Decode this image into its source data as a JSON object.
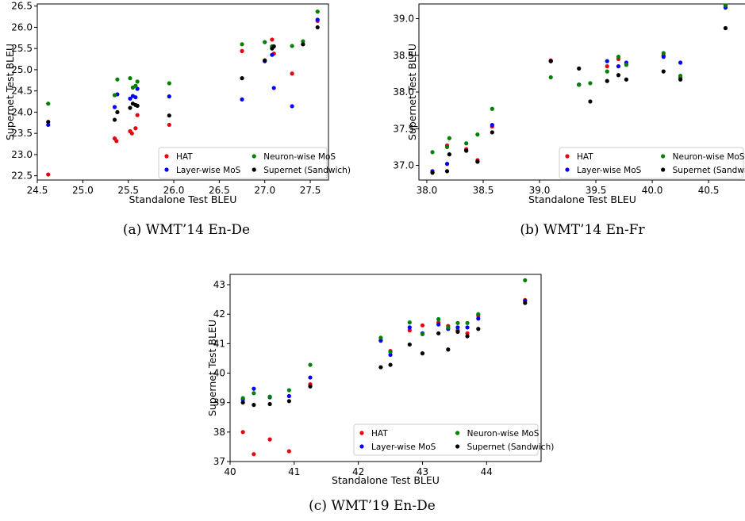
{
  "chart_data": [
    {
      "type": "scatter",
      "caption": "(a) WMT’14 En-De",
      "xlabel": "Standalone Test BLEU",
      "ylabel": "Supernet Test BLEU",
      "xlim": [
        24.5,
        27.7
      ],
      "ylim": [
        22.4,
        26.55
      ],
      "xticks": [
        "24.5",
        "25.0",
        "25.5",
        "26.0",
        "26.5",
        "27.0",
        "27.5"
      ],
      "yticks": [
        "22.5",
        "23.0",
        "23.5",
        "24.0",
        "24.5",
        "25.0",
        "25.5",
        "26.0",
        "26.5"
      ],
      "legend_position": "lower-right",
      "series": [
        {
          "name": "HAT",
          "color": "#e8000b",
          "points": [
            [
              24.62,
              22.53
            ],
            [
              25.35,
              23.38
            ],
            [
              25.37,
              23.32
            ],
            [
              25.52,
              23.55
            ],
            [
              25.54,
              23.5
            ],
            [
              25.58,
              23.62
            ],
            [
              25.6,
              23.93
            ],
            [
              25.95,
              23.7
            ],
            [
              26.75,
              25.44
            ],
            [
              27.08,
              25.71
            ],
            [
              27.1,
              25.38
            ],
            [
              27.3,
              24.91
            ],
            [
              27.58,
              26.15
            ]
          ]
        },
        {
          "name": "Layer-wise MoS",
          "color": "#0000ff",
          "points": [
            [
              24.62,
              23.7
            ],
            [
              25.35,
              24.12
            ],
            [
              25.38,
              24.42
            ],
            [
              25.52,
              24.32
            ],
            [
              25.55,
              24.38
            ],
            [
              25.58,
              24.35
            ],
            [
              25.6,
              24.55
            ],
            [
              25.95,
              24.37
            ],
            [
              26.75,
              24.3
            ],
            [
              27.0,
              25.2
            ],
            [
              27.1,
              24.57
            ],
            [
              27.08,
              25.35
            ],
            [
              27.3,
              24.14
            ],
            [
              27.42,
              25.6
            ],
            [
              27.58,
              26.18
            ]
          ]
        },
        {
          "name": "Neuron-wise MoS",
          "color": "#008000",
          "points": [
            [
              24.62,
              24.2
            ],
            [
              25.35,
              24.4
            ],
            [
              25.38,
              24.77
            ],
            [
              25.52,
              24.8
            ],
            [
              25.55,
              24.58
            ],
            [
              25.58,
              24.62
            ],
            [
              25.6,
              24.72
            ],
            [
              25.95,
              24.68
            ],
            [
              26.75,
              25.6
            ],
            [
              27.0,
              25.65
            ],
            [
              27.08,
              25.55
            ],
            [
              27.3,
              25.56
            ],
            [
              27.42,
              25.67
            ],
            [
              27.58,
              26.37
            ]
          ]
        },
        {
          "name": "Supernet (Sandwich)",
          "color": "#000000",
          "points": [
            [
              24.62,
              23.77
            ],
            [
              25.35,
              23.82
            ],
            [
              25.38,
              24.0
            ],
            [
              25.52,
              24.1
            ],
            [
              25.55,
              24.2
            ],
            [
              25.58,
              24.17
            ],
            [
              25.6,
              24.15
            ],
            [
              25.95,
              23.92
            ],
            [
              26.75,
              24.8
            ],
            [
              27.0,
              25.22
            ],
            [
              27.08,
              25.5
            ],
            [
              27.1,
              25.55
            ],
            [
              27.42,
              25.6
            ],
            [
              27.58,
              26.0
            ]
          ]
        }
      ]
    },
    {
      "type": "scatter",
      "caption": "(b) WMT’14 En-Fr",
      "xlabel": "Standalone Test BLEU",
      "ylabel": "Supernet Test BLEU",
      "xlim": [
        37.93,
        40.83
      ],
      "ylim": [
        36.8,
        39.2
      ],
      "xticks": [
        "38.0",
        "38.5",
        "39.0",
        "39.5",
        "40.0",
        "40.5"
      ],
      "yticks": [
        "37.0",
        "37.5",
        "38.0",
        "38.5",
        "39.0"
      ],
      "legend_position": "lower-right",
      "series": [
        {
          "name": "HAT",
          "color": "#e8000b",
          "points": [
            [
              38.05,
              36.9
            ],
            [
              38.18,
              37.27
            ],
            [
              38.35,
              37.22
            ],
            [
              38.45,
              37.07
            ],
            [
              38.58,
              37.53
            ],
            [
              39.1,
              38.43
            ],
            [
              39.35,
              38.1
            ],
            [
              39.6,
              38.35
            ],
            [
              39.7,
              38.45
            ],
            [
              40.1,
              38.5
            ],
            [
              40.25,
              38.2
            ],
            [
              40.65,
              39.17
            ]
          ]
        },
        {
          "name": "Layer-wise MoS",
          "color": "#0000ff",
          "points": [
            [
              38.05,
              36.92
            ],
            [
              38.18,
              37.02
            ],
            [
              38.35,
              37.2
            ],
            [
              38.45,
              37.05
            ],
            [
              38.58,
              37.55
            ],
            [
              39.1,
              38.42
            ],
            [
              39.35,
              38.1
            ],
            [
              39.6,
              38.42
            ],
            [
              39.7,
              38.35
            ],
            [
              39.77,
              38.4
            ],
            [
              40.1,
              38.48
            ],
            [
              40.25,
              38.4
            ],
            [
              40.65,
              39.15
            ]
          ]
        },
        {
          "name": "Neuron-wise MoS",
          "color": "#008000",
          "points": [
            [
              38.05,
              37.18
            ],
            [
              38.18,
              37.25
            ],
            [
              38.2,
              37.37
            ],
            [
              38.35,
              37.3
            ],
            [
              38.45,
              37.42
            ],
            [
              38.58,
              37.77
            ],
            [
              39.1,
              38.2
            ],
            [
              39.35,
              38.1
            ],
            [
              39.45,
              38.12
            ],
            [
              39.6,
              38.28
            ],
            [
              39.7,
              38.48
            ],
            [
              39.77,
              38.37
            ],
            [
              40.1,
              38.53
            ],
            [
              40.25,
              38.22
            ],
            [
              40.65,
              39.18
            ]
          ]
        },
        {
          "name": "Supernet (Sandwich)",
          "color": "#000000",
          "points": [
            [
              38.05,
              36.9
            ],
            [
              38.18,
              36.92
            ],
            [
              38.2,
              37.15
            ],
            [
              38.35,
              37.2
            ],
            [
              38.45,
              37.05
            ],
            [
              38.58,
              37.45
            ],
            [
              39.1,
              38.42
            ],
            [
              39.35,
              38.32
            ],
            [
              39.45,
              37.87
            ],
            [
              39.6,
              38.15
            ],
            [
              39.7,
              38.23
            ],
            [
              39.77,
              38.17
            ],
            [
              40.1,
              38.28
            ],
            [
              40.25,
              38.17
            ],
            [
              40.65,
              38.87
            ]
          ]
        }
      ]
    },
    {
      "type": "scatter",
      "caption": "(c) WMT’19 En-De",
      "xlabel": "Standalone Test BLEU",
      "ylabel": "Supernet Test BLEU",
      "xlim": [
        40.0,
        44.85
      ],
      "ylim": [
        37.0,
        43.35
      ],
      "xticks": [
        "40",
        "41",
        "42",
        "43",
        "44"
      ],
      "yticks": [
        "37",
        "38",
        "39",
        "40",
        "41",
        "42",
        "43"
      ],
      "legend_position": "lower-right",
      "series": [
        {
          "name": "HAT",
          "color": "#e8000b",
          "points": [
            [
              40.2,
              38.0
            ],
            [
              40.37,
              37.25
            ],
            [
              40.62,
              37.75
            ],
            [
              40.92,
              37.35
            ],
            [
              41.25,
              39.62
            ],
            [
              42.35,
              41.12
            ],
            [
              42.5,
              40.75
            ],
            [
              42.8,
              41.45
            ],
            [
              43.0,
              41.62
            ],
            [
              43.25,
              41.72
            ],
            [
              43.4,
              41.6
            ],
            [
              43.55,
              41.45
            ],
            [
              43.7,
              41.35
            ],
            [
              43.87,
              41.95
            ],
            [
              44.6,
              42.48
            ]
          ]
        },
        {
          "name": "Layer-wise MoS",
          "color": "#0000ff",
          "points": [
            [
              40.2,
              39.1
            ],
            [
              40.37,
              39.47
            ],
            [
              40.62,
              39.18
            ],
            [
              40.92,
              39.22
            ],
            [
              41.25,
              39.85
            ],
            [
              42.35,
              41.1
            ],
            [
              42.5,
              40.62
            ],
            [
              42.8,
              41.55
            ],
            [
              43.0,
              41.35
            ],
            [
              43.25,
              41.65
            ],
            [
              43.4,
              41.5
            ],
            [
              43.55,
              41.55
            ],
            [
              43.7,
              41.55
            ],
            [
              43.87,
              41.85
            ],
            [
              44.6,
              42.45
            ]
          ]
        },
        {
          "name": "Neuron-wise MoS",
          "color": "#008000",
          "points": [
            [
              40.2,
              39.15
            ],
            [
              40.37,
              39.32
            ],
            [
              40.62,
              39.2
            ],
            [
              40.92,
              39.42
            ],
            [
              41.25,
              40.28
            ],
            [
              42.35,
              41.2
            ],
            [
              42.5,
              40.72
            ],
            [
              42.8,
              41.72
            ],
            [
              43.0,
              41.32
            ],
            [
              43.25,
              41.83
            ],
            [
              43.4,
              41.55
            ],
            [
              43.55,
              41.7
            ],
            [
              43.7,
              41.7
            ],
            [
              43.87,
              42.0
            ],
            [
              44.6,
              43.15
            ]
          ]
        },
        {
          "name": "Supernet (Sandwich)",
          "color": "#000000",
          "points": [
            [
              40.2,
              39.0
            ],
            [
              40.37,
              38.92
            ],
            [
              40.62,
              38.95
            ],
            [
              40.92,
              39.05
            ],
            [
              41.25,
              39.55
            ],
            [
              42.35,
              40.2
            ],
            [
              42.5,
              40.28
            ],
            [
              42.8,
              40.97
            ],
            [
              43.0,
              40.67
            ],
            [
              43.25,
              41.35
            ],
            [
              43.4,
              40.8
            ],
            [
              43.55,
              41.4
            ],
            [
              43.7,
              41.25
            ],
            [
              43.87,
              41.5
            ],
            [
              44.6,
              42.38
            ]
          ]
        }
      ]
    }
  ]
}
